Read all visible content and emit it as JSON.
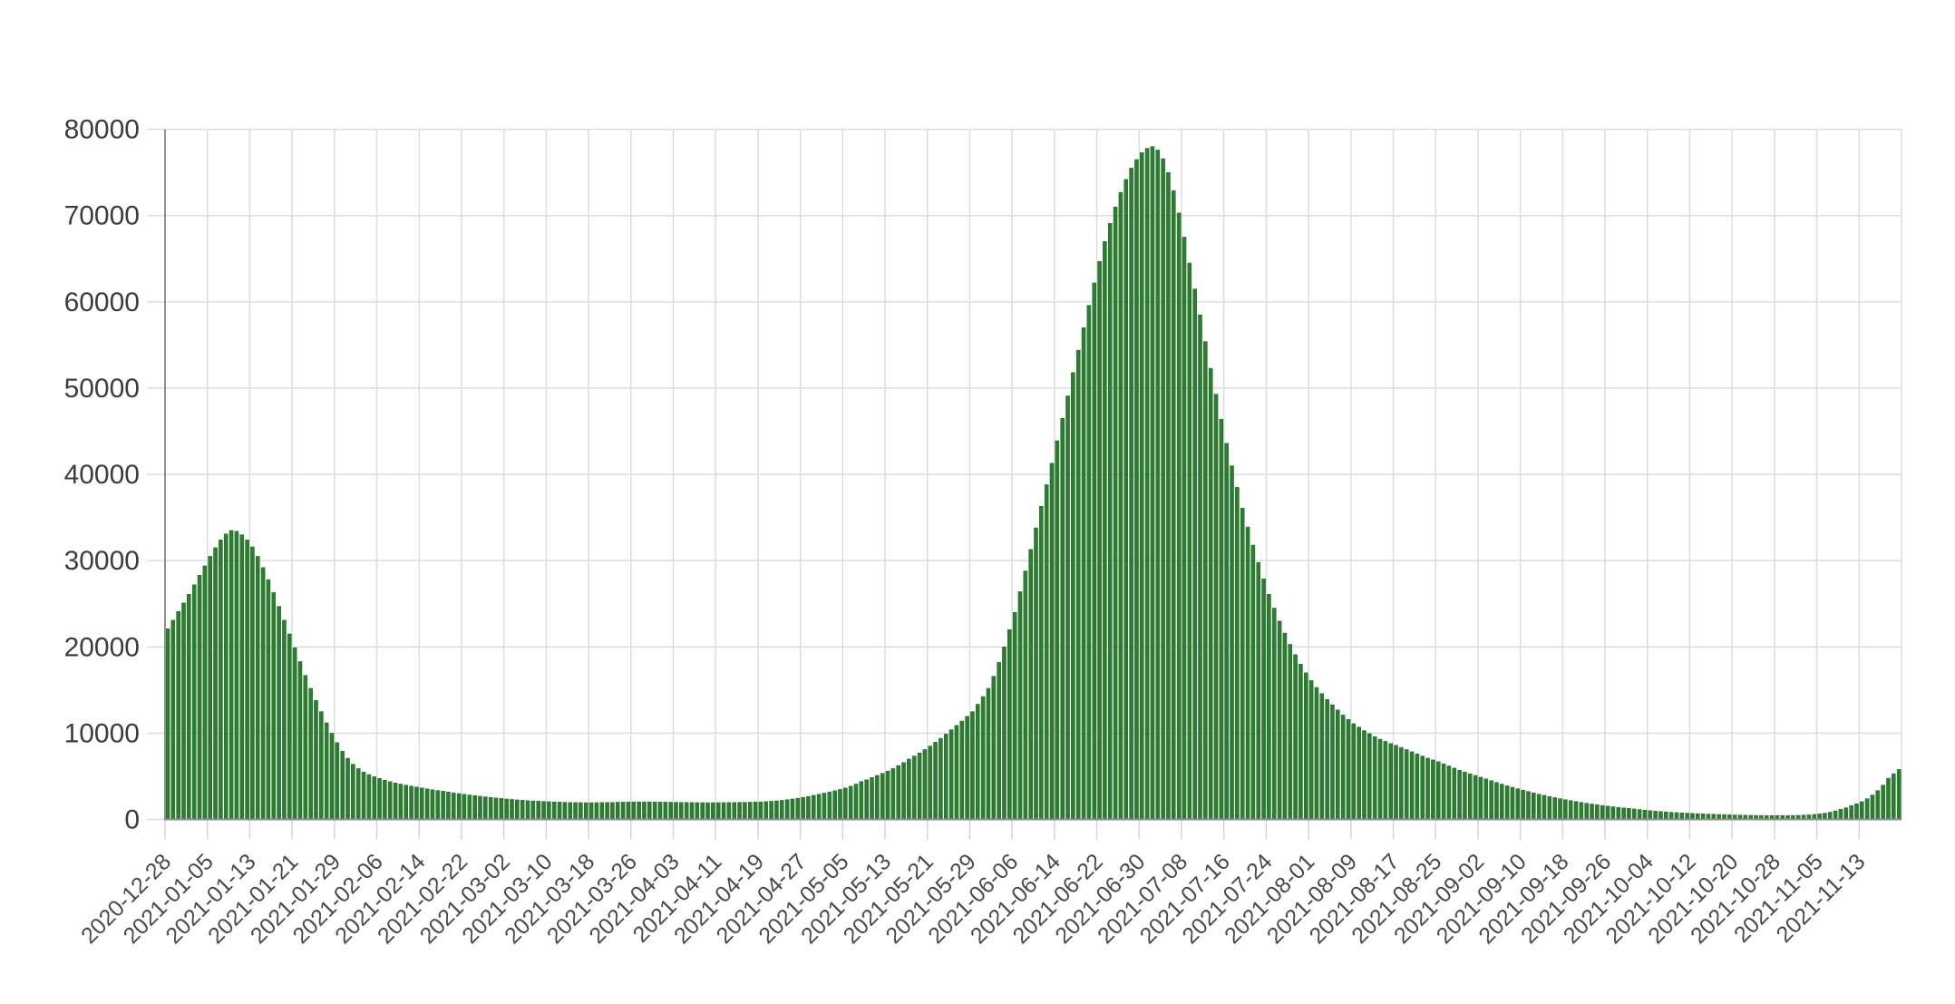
{
  "chart_data": {
    "type": "bar",
    "title": "",
    "xlabel": "",
    "ylabel": "",
    "frequency": "daily",
    "start_date": "2020-12-28",
    "end_date": "2021-11-20",
    "ylim": [
      0,
      80000
    ],
    "grid": true,
    "legend": "none",
    "y_tick_labels": [
      "0",
      "10000",
      "20000",
      "30000",
      "40000",
      "50000",
      "60000",
      "70000",
      "80000"
    ],
    "y_ticks": [
      0,
      10000,
      20000,
      30000,
      40000,
      50000,
      60000,
      70000,
      80000
    ],
    "x_tick_labels": [
      "2020-12-28",
      "2021-01-05",
      "2021-01-13",
      "2021-01-21",
      "2021-01-29",
      "2021-02-06",
      "2021-02-14",
      "2021-02-22",
      "2021-03-02",
      "2021-03-10",
      "2021-03-18",
      "2021-03-26",
      "2021-04-03",
      "2021-04-11",
      "2021-04-19",
      "2021-04-27",
      "2021-05-05",
      "2021-05-13",
      "2021-05-21",
      "2021-05-29",
      "2021-06-06",
      "2021-06-14",
      "2021-06-22",
      "2021-06-30",
      "2021-07-08",
      "2021-07-16",
      "2021-07-24",
      "2021-08-01",
      "2021-08-09",
      "2021-08-17",
      "2021-08-25",
      "2021-09-02",
      "2021-09-10",
      "2021-09-18",
      "2021-09-26",
      "2021-10-04",
      "2021-10-12",
      "2021-10-20",
      "2021-10-28",
      "2021-11-05",
      "2021-11-13"
    ],
    "x_label_every_n_bars": 8,
    "values": [
      22100,
      23100,
      24100,
      25100,
      26100,
      27200,
      28300,
      29400,
      30500,
      31500,
      32400,
      33100,
      33500,
      33400,
      33000,
      32400,
      31600,
      30500,
      29200,
      27800,
      26300,
      24700,
      23100,
      21500,
      19900,
      18300,
      16700,
      15200,
      13800,
      12500,
      11200,
      10000,
      8900,
      7900,
      7100,
      6400,
      5900,
      5500,
      5200,
      4950,
      4750,
      4550,
      4380,
      4230,
      4100,
      3980,
      3870,
      3760,
      3650,
      3550,
      3450,
      3360,
      3270,
      3180,
      3090,
      3000,
      2920,
      2840,
      2760,
      2690,
      2620,
      2550,
      2490,
      2430,
      2370,
      2320,
      2270,
      2230,
      2190,
      2150,
      2120,
      2090,
      2060,
      2030,
      2010,
      1990,
      1970,
      1960,
      1950,
      1940,
      1940,
      1950,
      1960,
      1970,
      1980,
      2000,
      2010,
      2020,
      2030,
      2040,
      2040,
      2040,
      2030,
      2020,
      2010,
      2000,
      1990,
      1980,
      1970,
      1960,
      1950,
      1950,
      1940,
      1940,
      1950,
      1950,
      1960,
      1970,
      1980,
      1990,
      2000,
      2020,
      2040,
      2070,
      2110,
      2160,
      2220,
      2290,
      2370,
      2460,
      2560,
      2670,
      2790,
      2920,
      3050,
      3190,
      3330,
      3480,
      3650,
      3850,
      4100,
      4400,
      4600,
      4850,
      5100,
      5350,
      5600,
      5900,
      6250,
      6600,
      7000,
      7350,
      7700,
      8100,
      8500,
      8950,
      9400,
      9900,
      10400,
      10900,
      11400,
      11950,
      12500,
      13350,
      14250,
      15200,
      16600,
      18200,
      20000,
      22000,
      24000,
      26400,
      28800,
      31300,
      33800,
      36300,
      38800,
      41300,
      43900,
      46500,
      49100,
      51800,
      54400,
      57000,
      59600,
      62200,
      64700,
      67000,
      69100,
      71000,
      72700,
      74200,
      75500,
      76500,
      77300,
      77800,
      78000,
      77600,
      76600,
      75000,
      72900,
      70300,
      67500,
      64500,
      61500,
      58500,
      55400,
      52300,
      49300,
      46400,
      43600,
      41000,
      38500,
      36100,
      33900,
      31800,
      29800,
      27900,
      26100,
      24500,
      23000,
      21600,
      20300,
      19100,
      18000,
      17000,
      16100,
      15300,
      14600,
      13900,
      13300,
      12700,
      12100,
      11600,
      11100,
      10700,
      10300,
      9950,
      9600,
      9300,
      9050,
      8800,
      8600,
      8350,
      8100,
      7850,
      7600,
      7350,
      7100,
      6900,
      6700,
      6450,
      6200,
      5950,
      5700,
      5500,
      5300,
      5100,
      4900,
      4700,
      4500,
      4300,
      4100,
      3900,
      3730,
      3560,
      3400,
      3240,
      3080,
      2930,
      2790,
      2660,
      2530,
      2410,
      2300,
      2190,
      2080,
      1980,
      1880,
      1790,
      1700,
      1620,
      1540,
      1470,
      1400,
      1340,
      1280,
      1220,
      1150,
      1080,
      1010,
      960,
      915,
      870,
      830,
      795,
      760,
      730,
      700,
      672,
      646,
      622,
      600,
      578,
      558,
      538,
      520,
      505,
      492,
      480,
      468,
      458,
      450,
      446,
      445,
      447,
      452,
      460,
      470,
      495,
      530,
      580,
      645,
      730,
      840,
      990,
      1190,
      1360,
      1600,
      1815,
      2060,
      2410,
      2830,
      3350,
      3980,
      4780,
      5300,
      5800
    ],
    "colors": {
      "bar_fill": "#2b7e2f",
      "bar_stroke": "#226428",
      "gridline": "#dcdcdc",
      "tick": "#d4d4d4",
      "axis": "#8f8f8f",
      "y_label_text": "#3d3d3d",
      "x_label_text": "#4a4a4a",
      "background": "#ffffff"
    }
  }
}
